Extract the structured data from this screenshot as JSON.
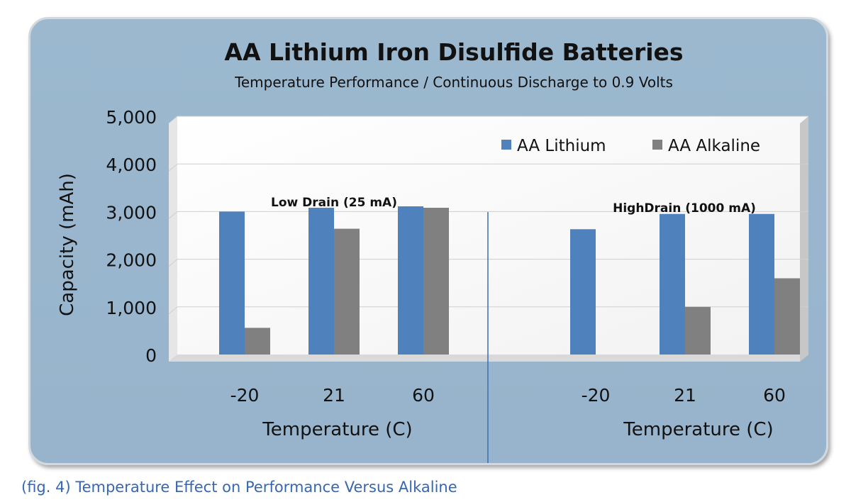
{
  "caption": "(fig. 4) Temperature Effect on Performance Versus Alkaline",
  "chart_data": {
    "type": "bar",
    "title": "AA Lithium Iron Disulfide Batteries",
    "subtitle": "Temperature Performance / Continuous Discharge to 0.9 Volts",
    "ylabel": "Capacity (mAh)",
    "ylim": [
      0,
      5000
    ],
    "yticks": [
      "5,000",
      "4,000",
      "3,000",
      "2,000",
      "1,000",
      "0"
    ],
    "grid": true,
    "legend_position": "top-right",
    "legend": [
      {
        "name": "AA Lithium",
        "color": "#4f81bd"
      },
      {
        "name": "AA Alkaline",
        "color": "#808080"
      }
    ],
    "groups": [
      {
        "label": "Low Drain (25 mA)",
        "xlabel": "Temperature (C)",
        "categories": [
          "-20",
          "21",
          "60"
        ],
        "series": [
          {
            "name": "AA Lithium",
            "values": [
              3000,
              3080,
              3110
            ]
          },
          {
            "name": "AA Alkaline",
            "values": [
              560,
              2640,
              3080
            ]
          }
        ]
      },
      {
        "label": "HighDrain (1000 mA)",
        "xlabel": "Temperature (C)",
        "categories": [
          "-20",
          "21",
          "60"
        ],
        "series": [
          {
            "name": "AA Lithium",
            "values": [
              2630,
              2950,
              2950
            ]
          },
          {
            "name": "AA Alkaline",
            "values": [
              0,
              1000,
              1600
            ]
          }
        ]
      }
    ]
  }
}
